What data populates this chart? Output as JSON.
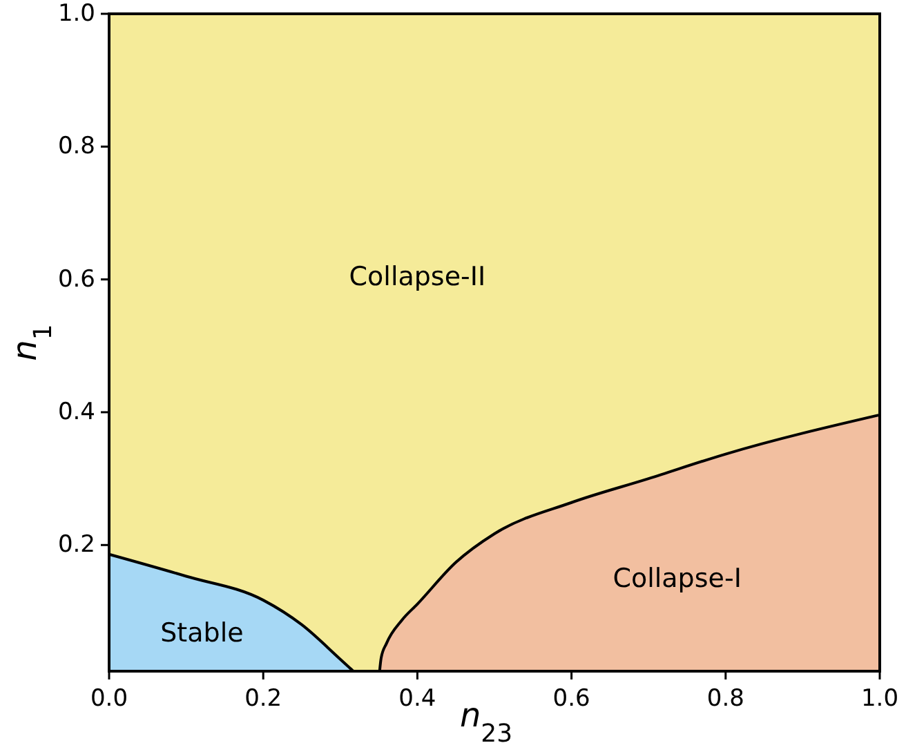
{
  "chart_data": {
    "type": "area",
    "xlabel": "n$_{23}$",
    "ylabel": "n$_{1}$",
    "xlim": [
      0,
      1
    ],
    "ylim": [
      0.01,
      1
    ],
    "xticks": [
      {
        "value": 0,
        "label": "0.0"
      },
      0.2,
      0.4,
      0.6,
      0.8,
      {
        "value": 1,
        "label": "1.0"
      }
    ],
    "yticks": [
      0.2,
      0.4,
      0.6,
      0.8,
      {
        "value": 1,
        "label": "1.0"
      }
    ],
    "bands": [
      {
        "axis": "y",
        "from": 0.01,
        "to": 1,
        "color": "#f5eb99",
        "label": "Collapse-II"
      }
    ],
    "series": [
      {
        "name": "Stable",
        "color": "#a6d8f5",
        "x": [
          0,
          0.1,
          0.2,
          0.25,
          0.3,
          0.317
        ],
        "values": [
          0.186,
          0.153,
          0.117,
          0.08,
          0.028,
          0.01
        ]
      },
      {
        "name": "Collapse-I",
        "color": "#f2bfa0",
        "x": [
          0.351,
          0.353,
          0.36,
          0.38,
          0.4,
          0.45,
          0.5,
          0.6,
          0.7,
          0.8,
          1
        ],
        "values": [
          0.01,
          0.03,
          0.052,
          0.087,
          0.111,
          0.174,
          0.217,
          0.264,
          0.3,
          0.337,
          0.396
        ]
      }
    ]
  }
}
